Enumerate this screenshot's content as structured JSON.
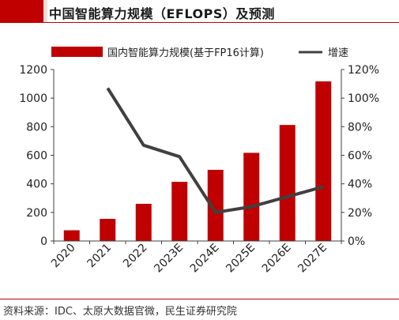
{
  "title": "中国智能算力规模（EFLOPS）及预测",
  "source": "资料来源：IDC、太原大数据官微，民生证券研究院",
  "colors": {
    "bar": "#c00000",
    "line": "#404040",
    "accent": "#c00000",
    "axis": "#404040"
  },
  "chart_data": {
    "type": "bar+line",
    "categories": [
      "2020",
      "2021",
      "2022",
      "2023E",
      "2024E",
      "2025E",
      "2026E",
      "2027E"
    ],
    "series": [
      {
        "name": "国内智能算力规模(基于FP16计算)",
        "type": "bar",
        "axis": "left",
        "values": [
          75,
          155,
          260,
          414,
          498,
          617,
          812,
          1117
        ]
      },
      {
        "name": "增速",
        "type": "line",
        "axis": "right",
        "values": [
          null,
          1.07,
          0.67,
          0.59,
          0.2,
          0.24,
          0.31,
          0.38
        ]
      }
    ],
    "yleft": {
      "min": 0,
      "max": 1200,
      "ticks": [
        "0",
        "200",
        "400",
        "600",
        "800",
        "1000",
        "1200"
      ]
    },
    "yright": {
      "min": 0,
      "max": 1.2,
      "ticks": [
        "0%",
        "20%",
        "40%",
        "60%",
        "80%",
        "100%",
        "120%"
      ]
    },
    "legend_position": "top",
    "grid": false
  }
}
